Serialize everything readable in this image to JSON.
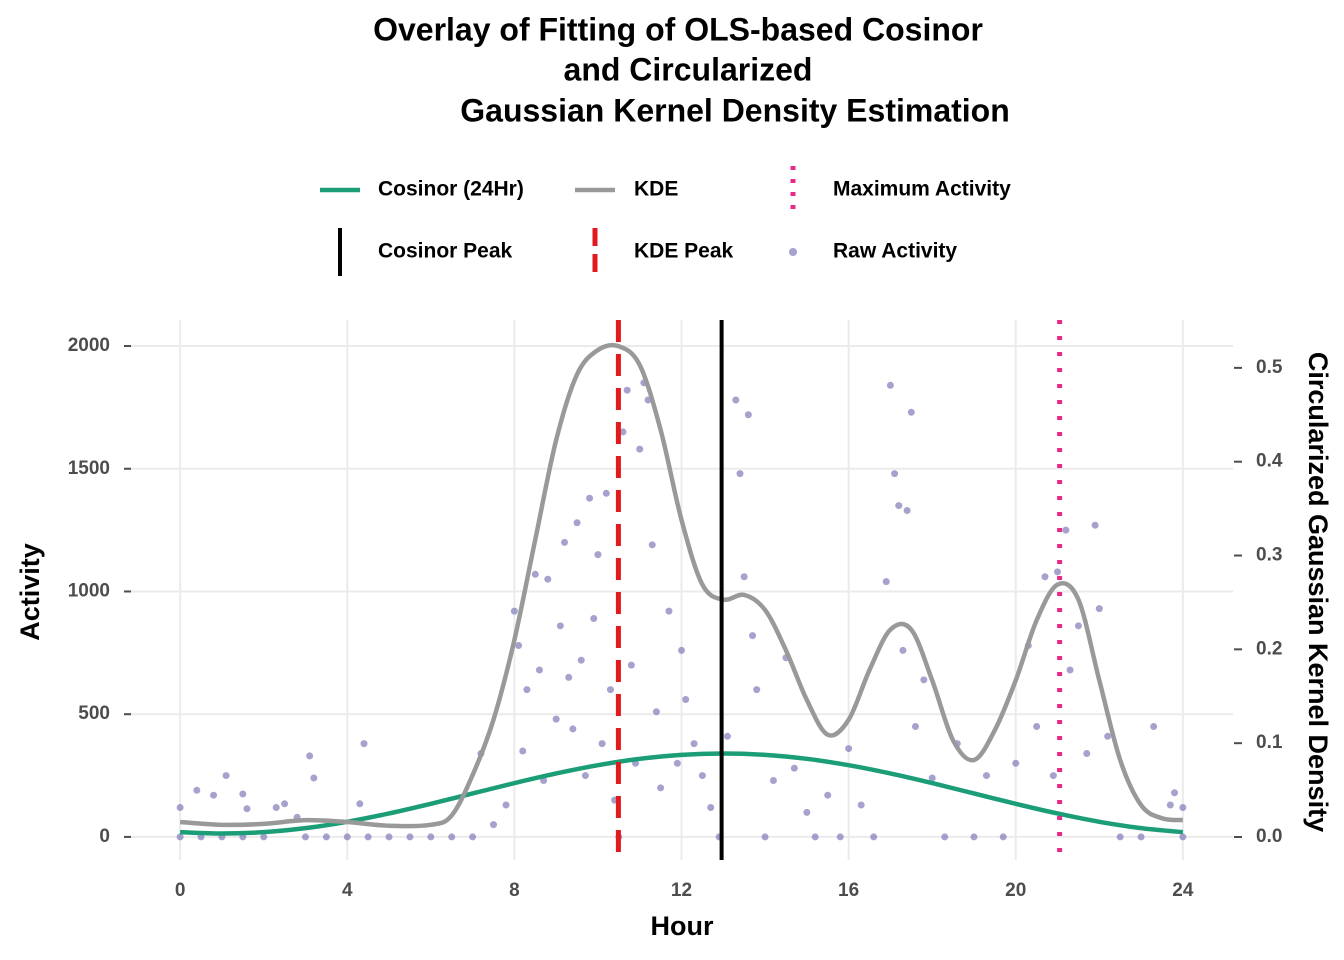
{
  "chart_data": {
    "type": "line",
    "title": [
      "Overlay of Fitting of OLS-based Cosinor",
      "and Circularized",
      "Gaussian Kernel Density Estimation"
    ],
    "x_label": "Hour",
    "y_label": "Activity",
    "y2_label": "Circularized Gaussian Kernel Density",
    "xlim": [
      -1.2,
      25.2
    ],
    "xticks": [
      0,
      4,
      8,
      12,
      16,
      20,
      24
    ],
    "ylim": [
      -94,
      2106
    ],
    "yticks": [
      0,
      500,
      1000,
      1500,
      2000
    ],
    "y2lim": [
      -0.0245,
      0.551
    ],
    "y2ticks": [
      {
        "value": 0,
        "label": "0.0"
      },
      0.1,
      0.2,
      0.3,
      0.4,
      0.5
    ],
    "grid": true,
    "legend": "top",
    "series": [
      {
        "name": "Cosinor (24Hr)",
        "kind": "line",
        "color": "#1b9e77",
        "x": [
          0,
          1,
          2,
          3,
          4,
          5,
          6,
          7,
          8,
          9,
          10,
          11,
          12,
          13,
          14,
          15,
          16,
          17,
          18,
          19,
          20,
          21,
          22,
          23,
          24
        ],
        "values": [
          19.5,
          14,
          19.5,
          35.8,
          61.7,
          95.5,
          134.8,
          177,
          219.2,
          258.5,
          292.2,
          318.2,
          334.5,
          340,
          334.5,
          318.2,
          292.2,
          258.5,
          219.2,
          177,
          134.8,
          95.5,
          61.7,
          35.8,
          19.5
        ]
      },
      {
        "name": "KDE",
        "kind": "line",
        "axis": "y2",
        "color": "#999999",
        "x": [
          0,
          1,
          2,
          3,
          4,
          5,
          6,
          6.5,
          7,
          7.5,
          8,
          8.5,
          9,
          9.5,
          10,
          10.5,
          11,
          11.5,
          12,
          12.5,
          13,
          13.5,
          14,
          14.5,
          15,
          15.5,
          16,
          16.5,
          17,
          17.5,
          18,
          18.5,
          19,
          19.5,
          20,
          20.5,
          21,
          21.5,
          22,
          22.5,
          23,
          23.5,
          24
        ],
        "values": [
          0.016,
          0.013,
          0.014,
          0.018,
          0.016,
          0.012,
          0.013,
          0.023,
          0.066,
          0.125,
          0.21,
          0.317,
          0.423,
          0.493,
          0.519,
          0.523,
          0.503,
          0.434,
          0.338,
          0.269,
          0.253,
          0.258,
          0.242,
          0.199,
          0.146,
          0.109,
          0.125,
          0.178,
          0.221,
          0.221,
          0.167,
          0.103,
          0.082,
          0.114,
          0.167,
          0.231,
          0.269,
          0.253,
          0.167,
          0.082,
          0.034,
          0.02,
          0.018
        ]
      },
      {
        "name": "Maximum Activity",
        "kind": "vline",
        "style": "dotted",
        "color": "#e7298a",
        "x": 21.05
      },
      {
        "name": "Cosinor Peak",
        "kind": "vline",
        "style": "solid",
        "color": "#000000",
        "x": 12.96
      },
      {
        "name": "KDE Peak",
        "kind": "vline",
        "style": "dashed",
        "color": "#e31a1c",
        "x": 10.49
      },
      {
        "name": "Raw Activity",
        "kind": "scatter",
        "color": "#7570b3",
        "x": [
          0,
          0,
          0.4,
          0.5,
          0.8,
          1.0,
          1.1,
          1.5,
          1.5,
          1.6,
          2.0,
          2.3,
          2.5,
          2.8,
          3.0,
          3.1,
          3.2,
          3.5,
          4.0,
          4.3,
          4.4,
          4.5,
          5.0,
          5.5,
          6.0,
          6.5,
          7.0,
          7.2,
          7.5,
          7.8,
          8.0,
          8.1,
          8.2,
          8.3,
          8.5,
          8.6,
          8.7,
          8.8,
          9.0,
          9.1,
          9.2,
          9.3,
          9.4,
          9.5,
          9.6,
          9.7,
          9.8,
          9.9,
          10.0,
          10.1,
          10.2,
          10.3,
          10.4,
          10.5,
          10.6,
          10.7,
          10.8,
          10.9,
          11.0,
          11.1,
          11.2,
          11.3,
          11.4,
          11.5,
          11.7,
          11.9,
          12.0,
          12.1,
          12.3,
          12.5,
          12.7,
          12.9,
          13.1,
          13.3,
          13.4,
          13.5,
          13.6,
          13.7,
          13.8,
          14.0,
          14.2,
          14.5,
          14.7,
          15.0,
          15.2,
          15.5,
          15.8,
          16.0,
          16.3,
          16.6,
          16.9,
          17.0,
          17.1,
          17.2,
          17.3,
          17.4,
          17.5,
          17.6,
          17.8,
          18.0,
          18.3,
          18.6,
          19.0,
          19.3,
          19.7,
          20.0,
          20.3,
          20.5,
          20.7,
          20.9,
          21.0,
          21.2,
          21.3,
          21.5,
          21.7,
          21.9,
          22.0,
          22.2,
          22.5,
          23.0,
          23.3,
          23.7,
          23.8,
          24.0,
          24.0
        ],
        "values": [
          120,
          0,
          190,
          0,
          170,
          0,
          250,
          175,
          0,
          115,
          0,
          120,
          135,
          80,
          0,
          330,
          240,
          0,
          0,
          135,
          380,
          0,
          0,
          0,
          0,
          0,
          0,
          340,
          50,
          130,
          920,
          780,
          350,
          600,
          1070,
          680,
          230,
          1050,
          480,
          860,
          1200,
          650,
          440,
          1280,
          720,
          250,
          1380,
          890,
          1150,
          380,
          1400,
          600,
          150,
          0,
          1650,
          1820,
          700,
          300,
          1580,
          1850,
          1780,
          1190,
          510,
          200,
          920,
          300,
          760,
          560,
          380,
          250,
          120,
          0,
          410,
          1780,
          1480,
          1060,
          1720,
          820,
          600,
          0,
          230,
          730,
          280,
          100,
          0,
          170,
          0,
          360,
          130,
          0,
          1040,
          1840,
          1480,
          1350,
          760,
          1330,
          1730,
          450,
          640,
          240,
          0,
          380,
          0,
          250,
          0,
          300,
          780,
          450,
          1060,
          250,
          1080,
          1250,
          680,
          860,
          340,
          1270,
          930,
          410,
          0,
          0,
          450,
          130,
          180,
          0,
          120
        ]
      }
    ]
  }
}
